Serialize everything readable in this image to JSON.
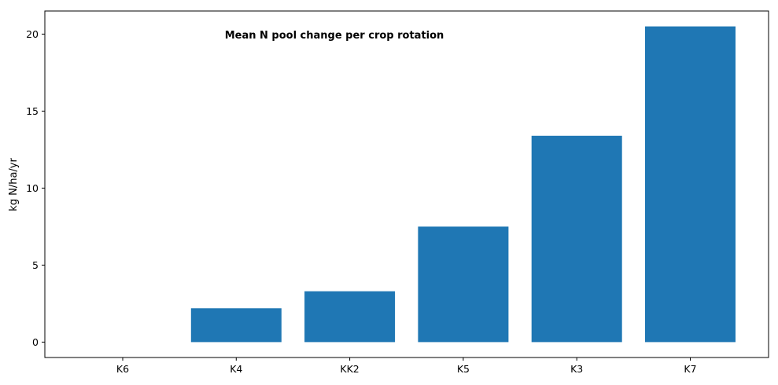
{
  "chart_data": {
    "type": "bar",
    "title": "Mean N pool change per crop rotation",
    "xlabel": "",
    "ylabel": "kg N/ha/yr",
    "categories": [
      "K6",
      "K4",
      "KK2",
      "K5",
      "K3",
      "K7"
    ],
    "values": [
      0.0,
      2.2,
      3.3,
      7.5,
      13.4,
      20.5
    ],
    "ylim": [
      -1.0,
      21.5
    ],
    "yticks": [
      0,
      5,
      10,
      15,
      20
    ],
    "bar_color": "#1f77b4",
    "grid": false,
    "legend": false
  }
}
